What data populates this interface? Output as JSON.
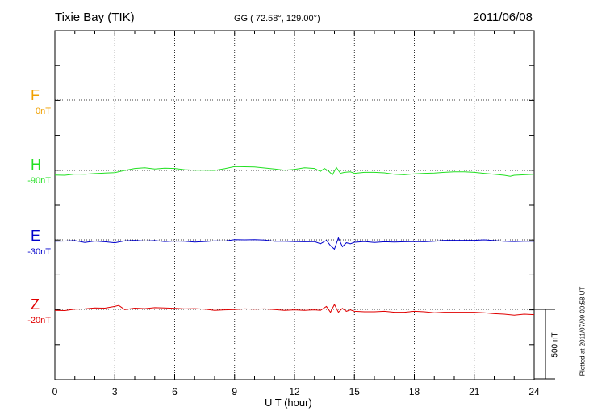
{
  "header": {
    "station": "Tixie Bay (TIK)",
    "coords": "GG ( 72.58°, 129.00°)",
    "date": "2011/06/08"
  },
  "footer": {
    "plotted": "Plotted at 2011/07/09 00:58 UT"
  },
  "colors": {
    "F": "#f0a000",
    "H": "#22e022",
    "E": "#0000cc",
    "Z": "#e00000"
  },
  "chart_data": {
    "type": "line",
    "xlabel": "U T (hour)",
    "xlim": [
      0,
      24
    ],
    "xticks": [
      "0",
      "3",
      "6",
      "9",
      "12",
      "15",
      "18",
      "21",
      "24"
    ],
    "scale_bar": {
      "label": "500 nT",
      "value": 500
    },
    "series": [
      {
        "name": "F",
        "baseline": "0nT",
        "color": "#f0a000",
        "x": [],
        "y": []
      },
      {
        "name": "H",
        "baseline": "-90nT",
        "color": "#22e022",
        "x": [
          0,
          0.5,
          1,
          1.5,
          2,
          2.5,
          3,
          3.5,
          4,
          4.5,
          5,
          5.5,
          6,
          6.5,
          7,
          7.5,
          8,
          8.5,
          9,
          9.5,
          10,
          10.5,
          11,
          11.5,
          12,
          12.5,
          13,
          13.3,
          13.5,
          13.7,
          13.9,
          14.1,
          14.3,
          14.5,
          14.8,
          15,
          15.5,
          16,
          16.5,
          17,
          17.5,
          18,
          18.5,
          19,
          19.5,
          20,
          20.5,
          21,
          21.5,
          22,
          22.5,
          22.8,
          23,
          23.5,
          24
        ],
        "y": [
          -95,
          -100,
          -75,
          -80,
          -65,
          -55,
          -45,
          0,
          40,
          55,
          30,
          45,
          40,
          15,
          5,
          5,
          0,
          35,
          80,
          75,
          70,
          50,
          30,
          5,
          20,
          55,
          40,
          -20,
          40,
          -10,
          -90,
          60,
          -60,
          -40,
          -30,
          -60,
          -40,
          -40,
          -50,
          -80,
          -90,
          -70,
          -60,
          -55,
          -40,
          -30,
          -30,
          -40,
          -60,
          -80,
          -100,
          -120,
          -100,
          -90,
          -80
        ]
      },
      {
        "name": "E",
        "baseline": "-30nT",
        "color": "#0000cc",
        "x": [
          0,
          0.5,
          1,
          1.5,
          2,
          2.5,
          3,
          3.5,
          4,
          4.5,
          5,
          5.5,
          6,
          6.5,
          7,
          7.5,
          8,
          8.5,
          9,
          9.5,
          10,
          10.5,
          11,
          11.5,
          12,
          12.5,
          13,
          13.3,
          13.6,
          13.8,
          14,
          14.2,
          14.4,
          14.6,
          14.8,
          15,
          15.5,
          16,
          16.5,
          17,
          17.5,
          18,
          18.5,
          19,
          19.5,
          20,
          20.5,
          21,
          21.5,
          22,
          22.5,
          23,
          23.5,
          24
        ],
        "y": [
          -30,
          -25,
          -15,
          -55,
          -25,
          -40,
          -60,
          -20,
          -10,
          -25,
          -15,
          -35,
          -25,
          -30,
          -45,
          -35,
          -20,
          -25,
          5,
          0,
          5,
          -5,
          -30,
          -30,
          -35,
          -40,
          -35,
          -80,
          -10,
          -120,
          -190,
          40,
          -140,
          -60,
          -80,
          -50,
          -35,
          -55,
          -40,
          -45,
          -40,
          -35,
          -40,
          -30,
          -10,
          -10,
          -10,
          -10,
          0,
          -15,
          -30,
          -35,
          -30,
          -30
        ]
      },
      {
        "name": "Z",
        "baseline": "-20nT",
        "color": "#e00000",
        "x": [
          0,
          0.5,
          1,
          1.5,
          2,
          2.5,
          3,
          3.2,
          3.5,
          4,
          4.5,
          5,
          5.5,
          6,
          6.5,
          7,
          7.5,
          8,
          8.5,
          9,
          9.5,
          10,
          10.5,
          11,
          11.5,
          12,
          12.5,
          13,
          13.3,
          13.6,
          13.8,
          14,
          14.2,
          14.4,
          14.6,
          14.8,
          15,
          15.5,
          16,
          16.5,
          17,
          17.5,
          18,
          18.5,
          19,
          19.5,
          20,
          20.5,
          21,
          21.5,
          22,
          22.5,
          23,
          23.5,
          24
        ],
        "y": [
          -20,
          -25,
          5,
          10,
          30,
          25,
          60,
          80,
          -5,
          25,
          15,
          35,
          30,
          20,
          10,
          15,
          5,
          -20,
          -10,
          -5,
          10,
          5,
          10,
          -5,
          -20,
          -10,
          -20,
          -10,
          -20,
          60,
          -60,
          100,
          -60,
          20,
          -40,
          -10,
          -40,
          -50,
          -50,
          -40,
          -60,
          -60,
          -40,
          -50,
          -70,
          -60,
          -60,
          -60,
          -60,
          -70,
          -90,
          -100,
          -120,
          -100,
          -110
        ]
      }
    ]
  }
}
